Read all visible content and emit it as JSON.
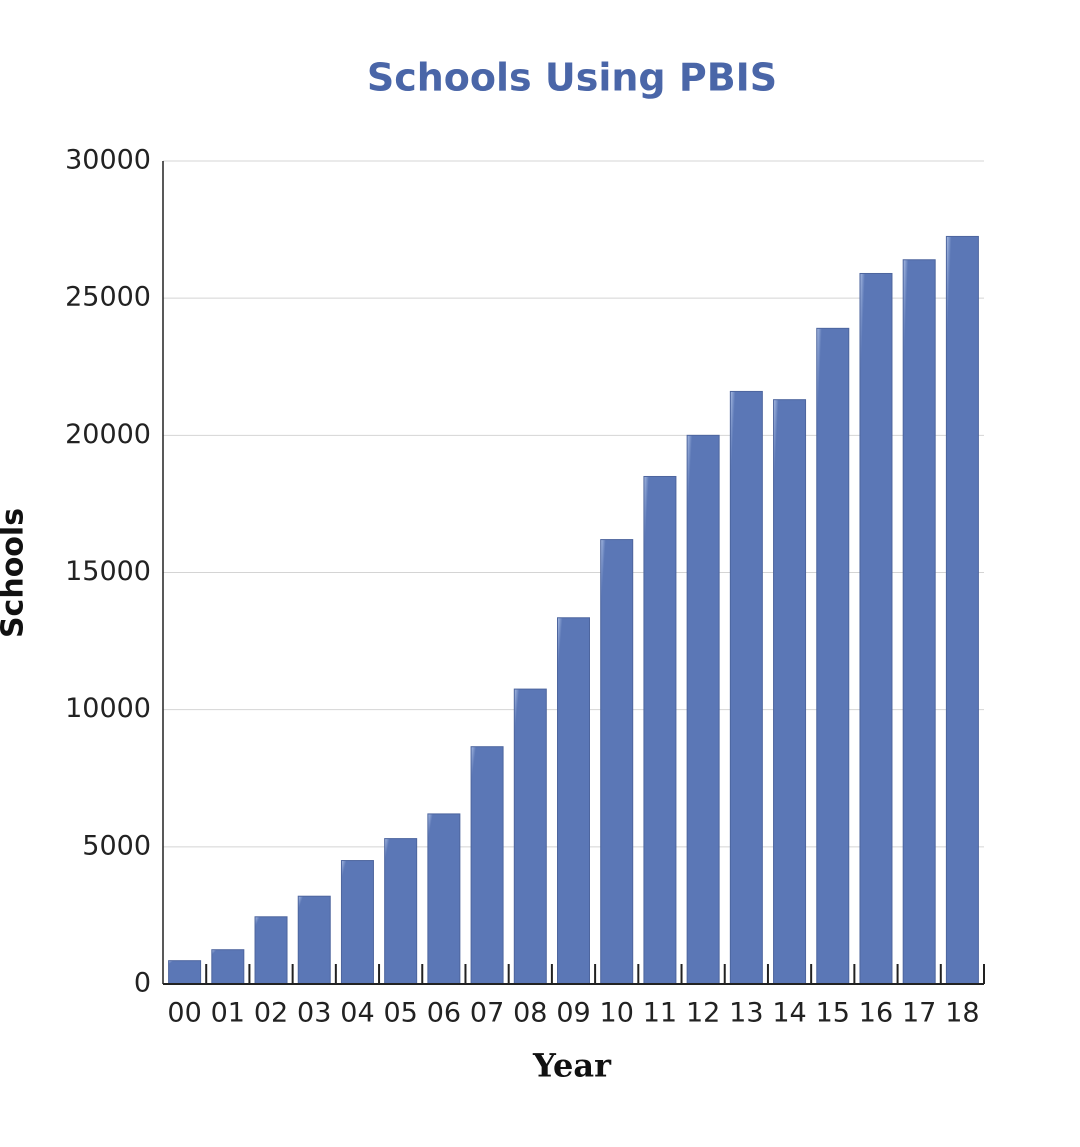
{
  "chart_data": {
    "type": "bar",
    "title": "Schools Using PBIS",
    "x_label": "Year",
    "y_label": "Schools",
    "categories": [
      "00",
      "01",
      "02",
      "03",
      "04",
      "05",
      "06",
      "07",
      "08",
      "09",
      "10",
      "11",
      "12",
      "13",
      "14",
      "15",
      "16",
      "17",
      "18"
    ],
    "values": [
      850,
      1250,
      2450,
      3200,
      4500,
      5300,
      6200,
      8650,
      10750,
      13350,
      16200,
      18500,
      20000,
      21600,
      21300,
      23900,
      25900,
      26400,
      27250
    ],
    "color": "#5b77b6",
    "ylim": [
      0,
      30000
    ],
    "yticks": [
      0,
      5000,
      10000,
      15000,
      20000,
      25000,
      30000
    ],
    "grid": true
  }
}
